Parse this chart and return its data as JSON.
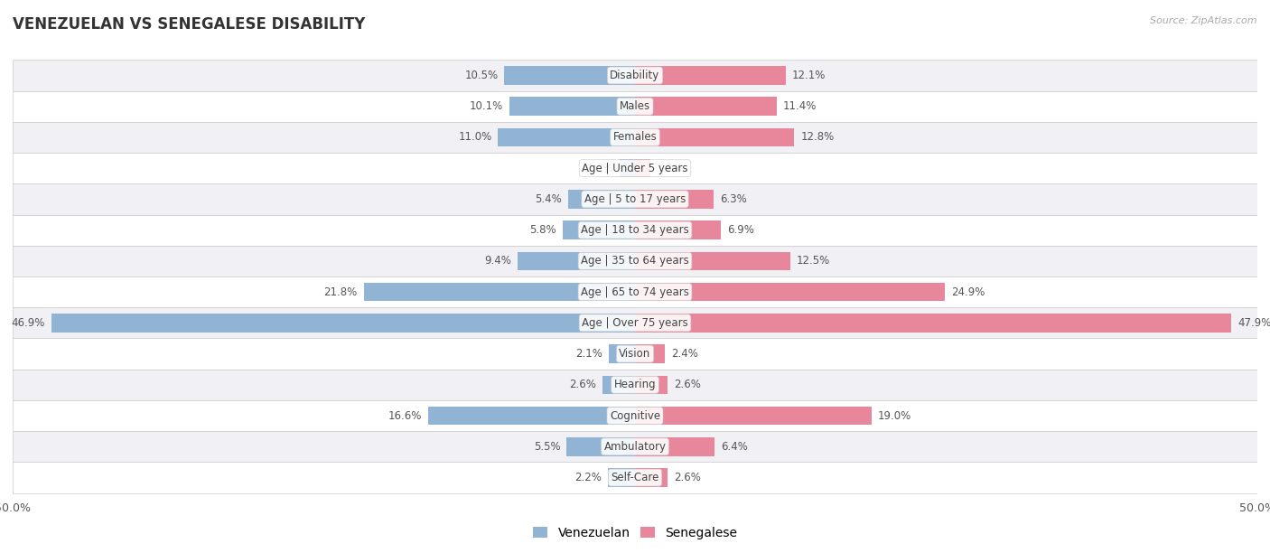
{
  "title": "VENEZUELAN VS SENEGALESE DISABILITY",
  "source": "Source: ZipAtlas.com",
  "categories": [
    "Disability",
    "Males",
    "Females",
    "Age | Under 5 years",
    "Age | 5 to 17 years",
    "Age | 18 to 34 years",
    "Age | 35 to 64 years",
    "Age | 65 to 74 years",
    "Age | Over 75 years",
    "Vision",
    "Hearing",
    "Cognitive",
    "Ambulatory",
    "Self-Care"
  ],
  "venezuelan": [
    10.5,
    10.1,
    11.0,
    1.2,
    5.4,
    5.8,
    9.4,
    21.8,
    46.9,
    2.1,
    2.6,
    16.6,
    5.5,
    2.2
  ],
  "senegalese": [
    12.1,
    11.4,
    12.8,
    1.2,
    6.3,
    6.9,
    12.5,
    24.9,
    47.9,
    2.4,
    2.6,
    19.0,
    6.4,
    2.6
  ],
  "venezuelan_color": "#92b4d4",
  "senegalese_color": "#e8879c",
  "bg_odd": "#f0f0f5",
  "bg_even": "#ffffff",
  "max_val": 50.0,
  "title_fontsize": 12,
  "label_fontsize": 8.5,
  "value_fontsize": 8.5,
  "tick_fontsize": 9,
  "legend_fontsize": 10
}
